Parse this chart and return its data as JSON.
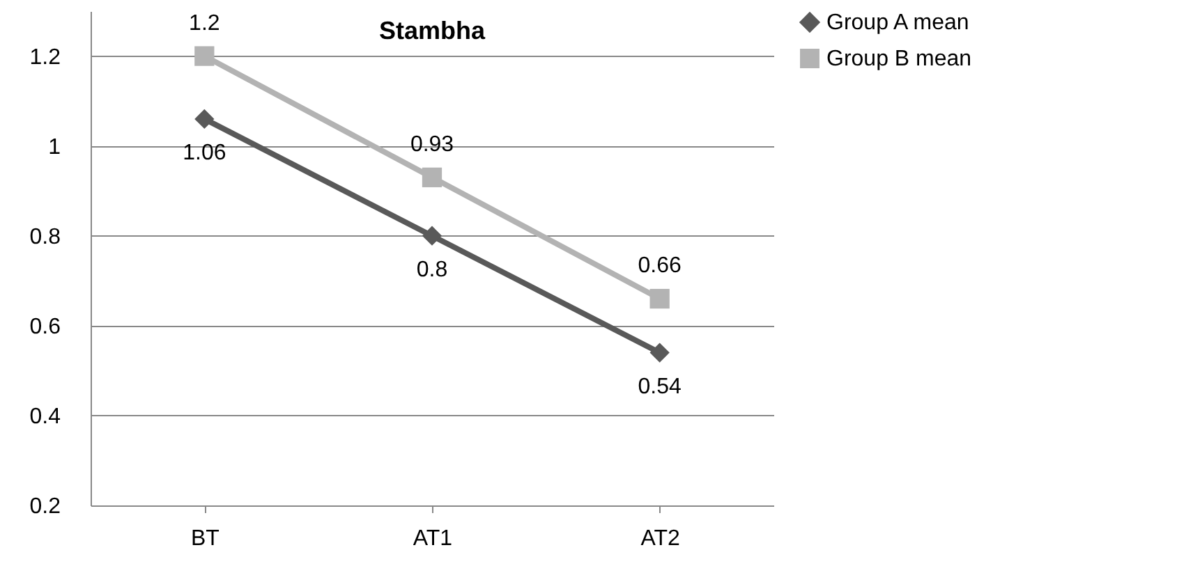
{
  "chart_data": {
    "type": "line",
    "title": "Stambha",
    "categories": [
      "BT",
      "AT1",
      "AT2"
    ],
    "series": [
      {
        "name": "Group A mean",
        "color": "#595959",
        "marker": "diamond",
        "values": [
          1.06,
          0.8,
          0.54
        ]
      },
      {
        "name": "Group B mean",
        "color": "#b3b3b3",
        "marker": "square",
        "values": [
          1.2,
          0.93,
          0.66
        ]
      }
    ],
    "ylim": [
      0.2,
      1.3
    ],
    "yticks": [
      0.2,
      0.4,
      0.6,
      0.8,
      1,
      1.2
    ],
    "grid": "y",
    "legend": "right",
    "data_labels": true
  }
}
